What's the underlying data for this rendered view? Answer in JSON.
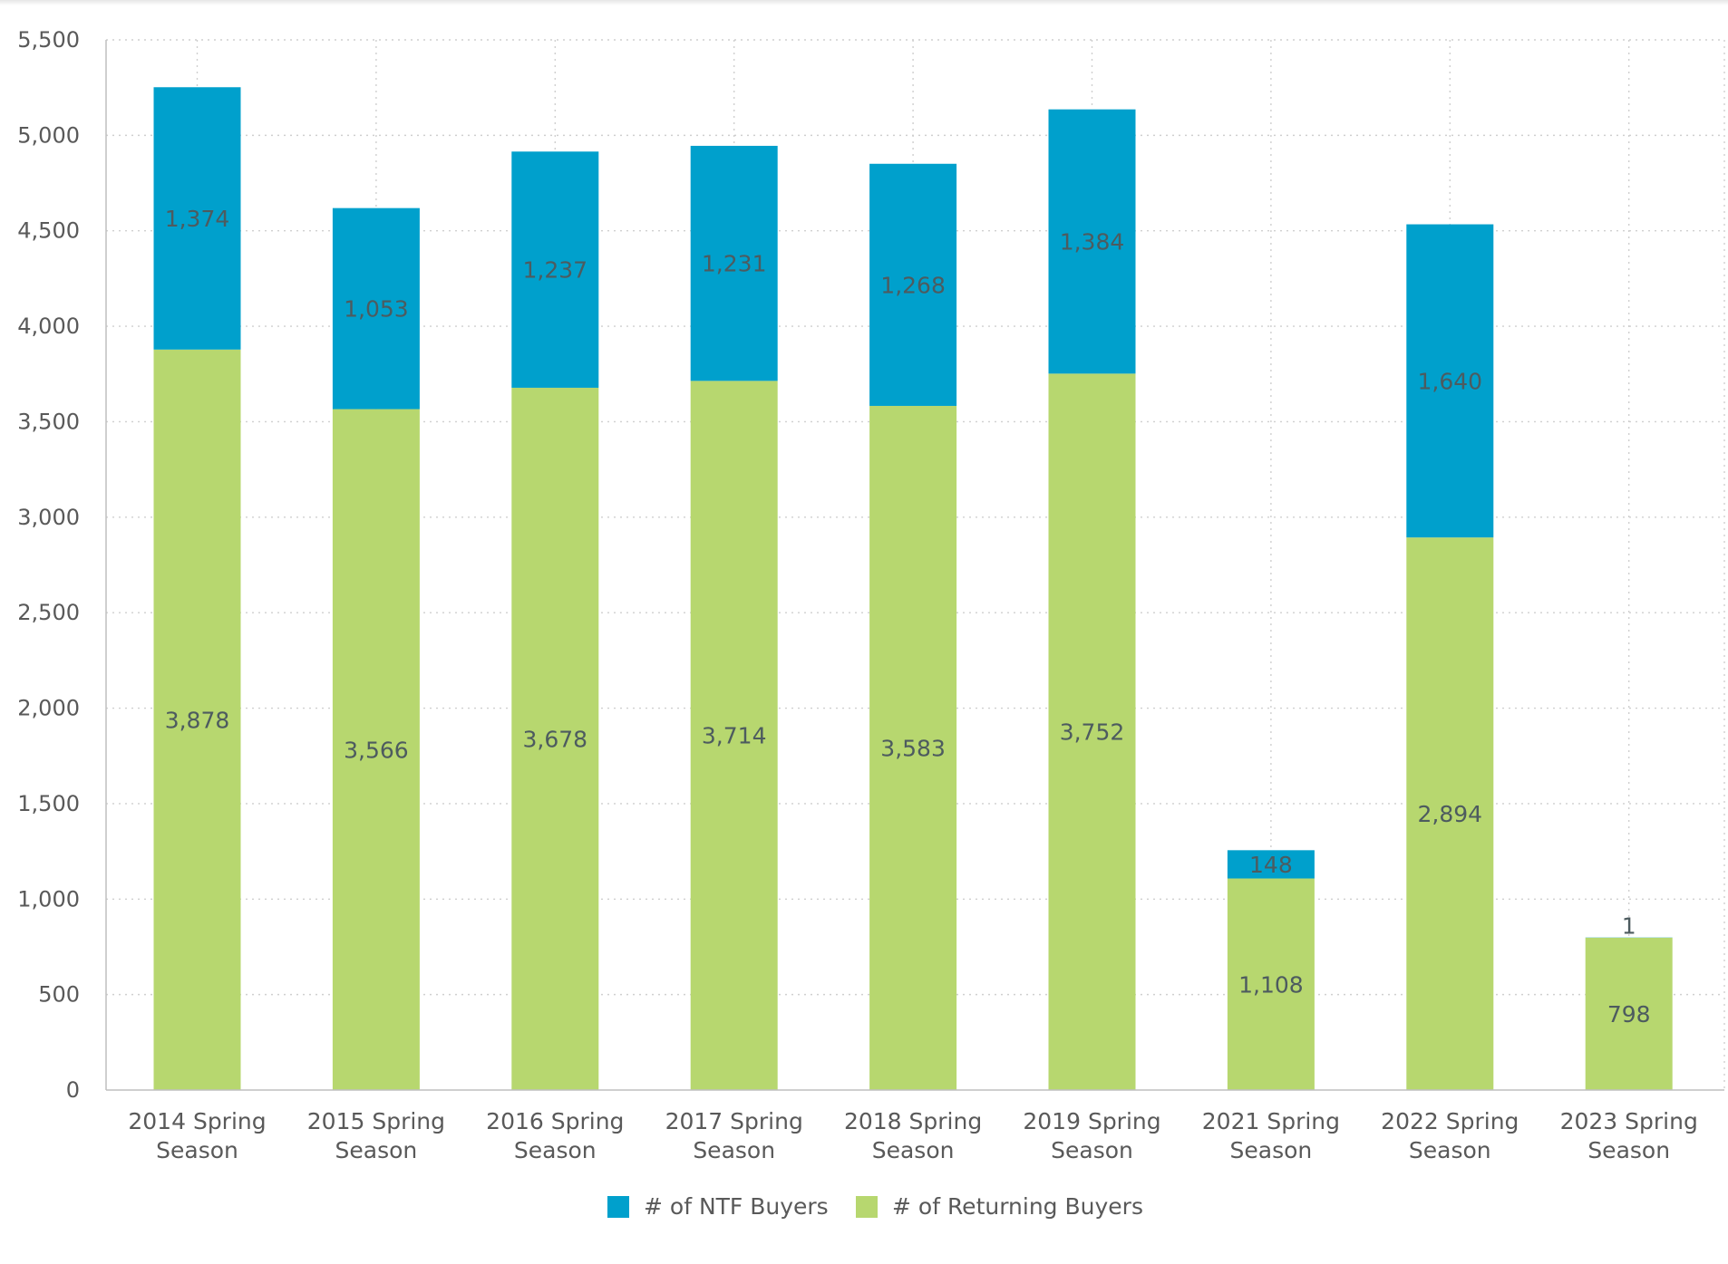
{
  "chart_data": {
    "type": "bar",
    "stacked": true,
    "categories": [
      [
        "2014 Spring",
        "Season"
      ],
      [
        "2015 Spring",
        "Season"
      ],
      [
        "2016 Spring",
        "Season"
      ],
      [
        "2017 Spring",
        "Season"
      ],
      [
        "2018 Spring",
        "Season"
      ],
      [
        "2019 Spring",
        "Season"
      ],
      [
        "2021 Spring",
        "Season"
      ],
      [
        "2022 Spring",
        "Season"
      ],
      [
        "2023 Spring",
        "Season"
      ]
    ],
    "series": [
      {
        "name": "# of Returning Buyers",
        "color": "#b7d76f",
        "values": [
          3878,
          3566,
          3678,
          3714,
          3583,
          3752,
          1108,
          2894,
          798
        ],
        "labels": [
          "3,878",
          "3,566",
          "3,678",
          "3,714",
          "3,583",
          "3,752",
          "1,108",
          "2,894",
          "798"
        ]
      },
      {
        "name": "# of NTF Buyers",
        "color": "#00a0cc",
        "values": [
          1374,
          1053,
          1237,
          1231,
          1268,
          1384,
          148,
          1640,
          1
        ],
        "labels": [
          "1,374",
          "1,053",
          "1,237",
          "1,231",
          "1,268",
          "1,384",
          "148",
          "1,640",
          "1"
        ]
      }
    ],
    "ylim": [
      0,
      5500
    ],
    "yticks": [
      0,
      500,
      1000,
      1500,
      2000,
      2500,
      3000,
      3500,
      4000,
      4500,
      5000,
      5500
    ],
    "ytick_labels": [
      "0",
      "500",
      "1,000",
      "1,500",
      "2,000",
      "2,500",
      "3,000",
      "3,500",
      "4,000",
      "4,500",
      "5,000",
      "5,500"
    ],
    "grid": true,
    "legend": {
      "placement": "bottom-center",
      "entries": [
        "# of NTF Buyers",
        "# of Returning Buyers"
      ]
    }
  }
}
